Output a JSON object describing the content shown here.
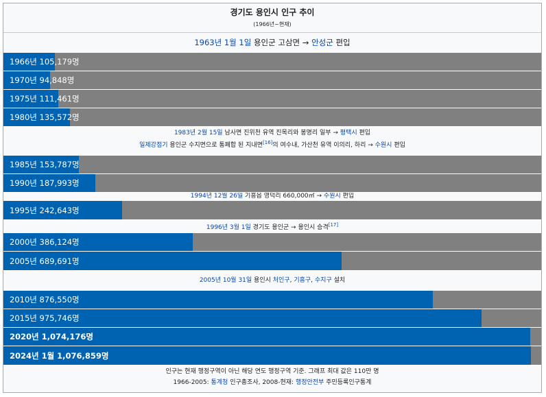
{
  "header": {
    "title": "경기도 용인시 인구 추이",
    "subtitle": "(1966년~현재)"
  },
  "notes": {
    "n1": {
      "link1": "1963년 1월 1일",
      "text1": " 용인군 고삼면 → ",
      "link2": "안성군",
      "text2": " 편입"
    },
    "n2a": {
      "link1": "1983년 2월 15일",
      "text1": " 남사면 진위천 유역 진목리와 봉명리 일부 → ",
      "link2": "평택시",
      "text2": " 편입"
    },
    "n2b": {
      "link1": "일제강점기",
      "text1": " 용인군 수지면으로 통폐합 된 지내면",
      "sup": "[16]",
      "text2": "의 여수내, 가산천 유역 이의리, 하리 → ",
      "link2": "수원시",
      "text3": " 편입"
    },
    "n3": {
      "link1": "1994년 12월 26일",
      "text1": " 기흥읍 영덕리 660,000㎡ → ",
      "link2": "수원시",
      "text2": " 편입"
    },
    "n4": {
      "link1": "1996년 3월 1일",
      "text1": " 경기도 용인군 → 용인시 승격",
      "sup": "[17]"
    },
    "n5": {
      "link1": "2005년 10월 31일",
      "text1": " 용인시 ",
      "link2": "처인구",
      "sep1": ", ",
      "link3": "기흥구",
      "sep2": ", ",
      "link4": "수지구",
      "text2": " 설치"
    }
  },
  "footer": {
    "line1": "인구는 현재 행정구역이 아닌 해당 연도 행정구역 기준. 그래프 최대 값은 110만 명",
    "line2_a": "1966-2005: ",
    "line2_link1": "통계청",
    "line2_b": " 인구총조사, 2008-현재: ",
    "line2_link2": "행정안전부",
    "line2_c": " 주민등록인구통계"
  },
  "colors": {
    "bar": "#0063b1",
    "track": "#808080",
    "link": "#0645ad"
  },
  "chart_data": {
    "type": "bar",
    "orientation": "horizontal",
    "title": "경기도 용인시 인구 추이",
    "subtitle": "(1966년~현재)",
    "xlim": [
      0,
      1100000
    ],
    "categories": [
      "1966년",
      "1970년",
      "1975년",
      "1980년",
      "1985년",
      "1990년",
      "1995년",
      "2000년",
      "2005년",
      "2010년",
      "2015년",
      "2020년",
      "2024년 1월"
    ],
    "values": [
      105179,
      94848,
      111461,
      135572,
      153787,
      187993,
      242643,
      386124,
      689691,
      876550,
      975746,
      1074176,
      1076859
    ],
    "labels": [
      "1966년 105,179명",
      "1970년 94,848명",
      "1975년 111,461명",
      "1980년 135,572명",
      "1985년 153,787명",
      "1990년 187,993명",
      "1995년 242,643명",
      "2000년 386,124명",
      "2005년 689,691명",
      "2010년 876,550명",
      "2015년 975,746명",
      "2020년 1,074,176명",
      "2024년 1월 1,076,859명"
    ],
    "bold": [
      false,
      false,
      false,
      false,
      false,
      false,
      false,
      false,
      false,
      false,
      false,
      true,
      true
    ]
  }
}
